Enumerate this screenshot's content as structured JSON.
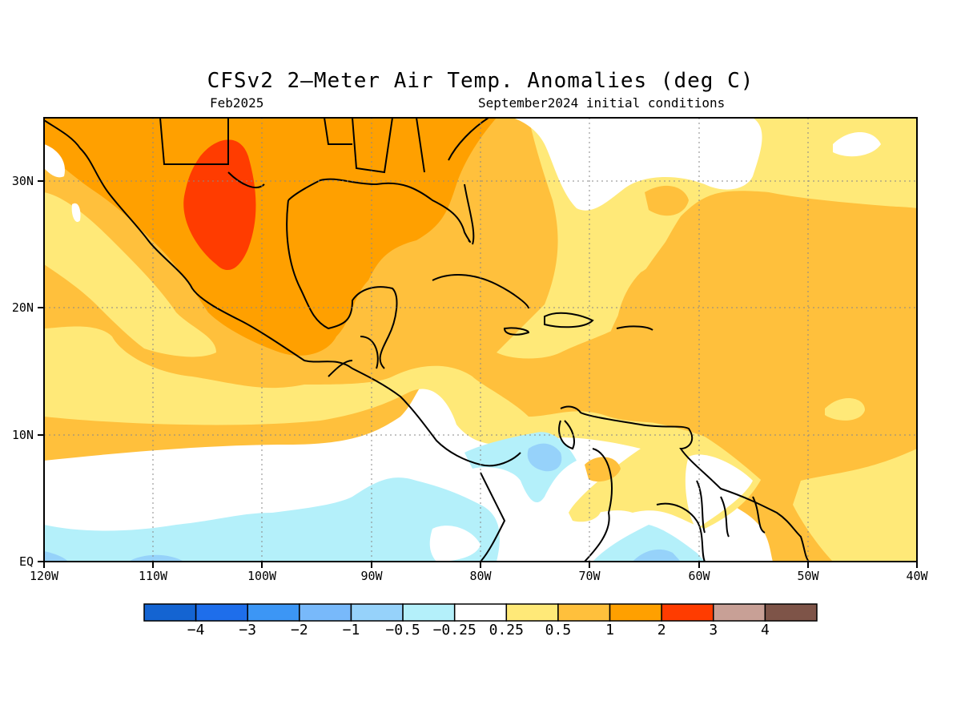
{
  "title": "CFSv2 2–Meter Air Temp. Anomalies (deg C)",
  "subtitle_left": "Feb2025",
  "subtitle_right": "September2024 initial conditions",
  "map": {
    "lon_range": [
      -120,
      -40
    ],
    "lat_range": [
      0,
      35
    ],
    "x_ticks": [
      "120W",
      "110W",
      "100W",
      "90W",
      "80W",
      "70W",
      "60W",
      "50W",
      "40W"
    ],
    "y_ticks": [
      "EQ",
      "10N",
      "20N",
      "30N"
    ],
    "grid": "dotted"
  },
  "colorbar": {
    "colors": [
      "#1464d2",
      "#1e6eeb",
      "#3c96f5",
      "#78b9fa",
      "#96d2fa",
      "#b4f0fa",
      "#ffffff",
      "#ffe978",
      "#ffc03c",
      "#ffa000",
      "#ff3c00",
      "#c8a096",
      "#7e5448"
    ],
    "labels": [
      "−4",
      "−3",
      "−2",
      "−1",
      "−0.5",
      "−0.25",
      "0.25",
      "0.5",
      "1",
      "2",
      "3",
      "4"
    ]
  },
  "colors": {
    "c_n05": "#b4f0fa",
    "c_n1": "#96d2fa",
    "c_p025": "#ffe978",
    "c_p05": "#ffc03c",
    "c_p1": "#ffa000",
    "c_p2": "#ff3c00"
  }
}
